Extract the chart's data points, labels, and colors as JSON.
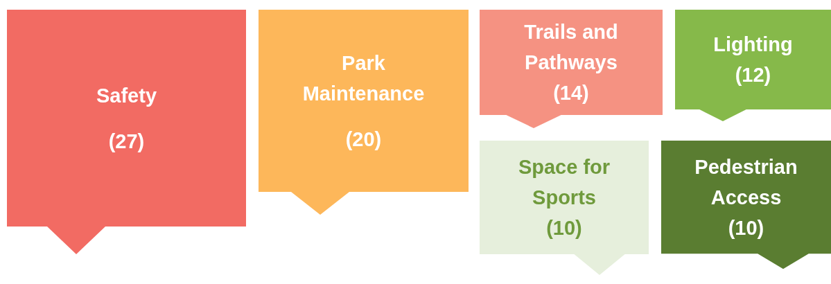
{
  "chart_data": {
    "type": "other",
    "categories": [
      "Safety",
      "Park Maintenance",
      "Trails and Pathways",
      "Lighting",
      "Space for Sports",
      "Pedestrian Access"
    ],
    "values": [
      27,
      20,
      14,
      12,
      10,
      10
    ],
    "value_labels": [
      "(27)",
      "(20)",
      "(14)",
      "(12)",
      "(10)",
      "(10)"
    ],
    "colors": [
      "#f26b63",
      "#fdb75a",
      "#f59282",
      "#86b94a",
      "#e6efdc",
      "#5a7d31"
    ]
  }
}
